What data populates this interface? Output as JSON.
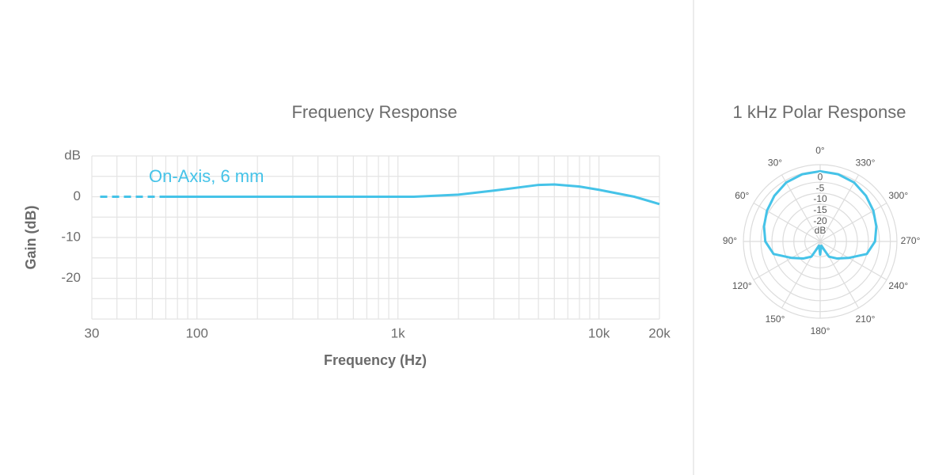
{
  "chart_data": [
    {
      "type": "line",
      "title": "Frequency Response",
      "xlabel": "Frequency (Hz)",
      "ylabel": "Gain (dB)",
      "xscale": "log",
      "xlim": [
        30,
        20000
      ],
      "xticks": [
        30,
        100,
        {
          "value": 1000,
          "label": "1k"
        },
        {
          "value": 10000,
          "label": "10k"
        },
        {
          "value": 20000,
          "label": "20k"
        }
      ],
      "x_minor_ticks": [
        40,
        50,
        60,
        70,
        80,
        90,
        200,
        300,
        400,
        500,
        600,
        700,
        800,
        900,
        2000,
        3000,
        4000,
        5000,
        6000,
        7000,
        8000,
        9000
      ],
      "ylim": [
        -30,
        10
      ],
      "yticks": [
        {
          "value": 10,
          "label": "dB"
        },
        0,
        -10,
        -20
      ],
      "y_minor_ticks": [
        5,
        -5,
        -15,
        -25,
        -30
      ],
      "grid": true,
      "x": [
        33,
        50,
        70,
        100,
        200,
        500,
        1000,
        1200,
        2000,
        3000,
        5000,
        6000,
        8000,
        10000,
        15000,
        20000
      ],
      "series": [
        {
          "name": "On-Axis, 6 mm",
          "color": "#45c3e8",
          "dashed_x_max": 70,
          "values": [
            0,
            0,
            0,
            0,
            0,
            0,
            0,
            0,
            0.5,
            1.5,
            2.9,
            3,
            2.5,
            1.7,
            0,
            -1.8
          ]
        }
      ]
    },
    {
      "type": "polar",
      "title": "1 kHz Polar Response",
      "color": "#45c3e8",
      "rlim": [
        -32,
        3
      ],
      "rticks": [
        0,
        -5,
        -10,
        -15,
        -20
      ],
      "r_minor_ticks": [
        -25
      ],
      "r_unit_label": "dB",
      "angle_ticks": [
        {
          "value": 0,
          "label": "0°"
        },
        {
          "value": 30,
          "label": "30°"
        },
        {
          "value": 60,
          "label": "60°"
        },
        {
          "value": 90,
          "label": "90°"
        },
        {
          "value": 120,
          "label": "120°"
        },
        {
          "value": 150,
          "label": "150°"
        },
        {
          "value": 180,
          "label": "180°"
        },
        {
          "value": 210,
          "label": "210°"
        },
        {
          "value": 240,
          "label": "240°"
        },
        {
          "value": 270,
          "label": "270°"
        },
        {
          "value": 300,
          "label": "300°"
        },
        {
          "value": 330,
          "label": "330°"
        }
      ],
      "angles": [
        0,
        15,
        30,
        45,
        60,
        75,
        90,
        105,
        120,
        135,
        150,
        165,
        180,
        195,
        210,
        225,
        240,
        255,
        270,
        285,
        300,
        315,
        330,
        345
      ],
      "values": [
        0,
        -0.3,
        -1,
        -2.5,
        -4,
        -5.5,
        -7,
        -10,
        -17,
        -21,
        -24,
        -30,
        -26,
        -30,
        -24,
        -21,
        -17,
        -10,
        -7,
        -5.5,
        -4,
        -2.5,
        -1,
        -0.3
      ]
    }
  ]
}
